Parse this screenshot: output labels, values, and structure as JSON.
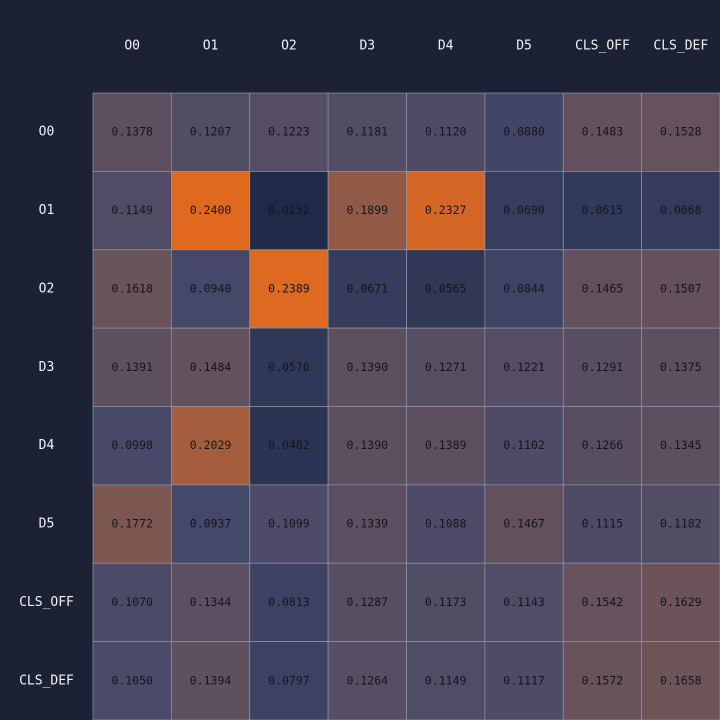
{
  "chart_data": {
    "type": "heatmap",
    "title": "",
    "xlabel": "",
    "ylabel": "",
    "x_labels": [
      "O0",
      "O1",
      "O2",
      "D3",
      "D4",
      "D5",
      "CLS_OFF",
      "CLS_DEF"
    ],
    "y_labels": [
      "O0",
      "O1",
      "O2",
      "D3",
      "D4",
      "D5",
      "CLS_OFF",
      "CLS_DEF"
    ],
    "values": [
      [
        "0.1378",
        "0.1207",
        "0.1223",
        "0.1181",
        "0.1120",
        "0.0880",
        "0.1483",
        "0.1528"
      ],
      [
        "0.1149",
        "0.2400",
        "0.0252",
        "0.1899",
        "0.2327",
        "0.0690",
        "0.0615",
        "0.0668"
      ],
      [
        "0.1618",
        "0.0940",
        "0.2389",
        "0.0671",
        "0.0565",
        "0.0844",
        "0.1465",
        "0.1507"
      ],
      [
        "0.1391",
        "0.1484",
        "0.0576",
        "0.1390",
        "0.1271",
        "0.1221",
        "0.1291",
        "0.1375"
      ],
      [
        "0.0998",
        "0.2029",
        "0.0482",
        "0.1390",
        "0.1389",
        "0.1102",
        "0.1266",
        "0.1345"
      ],
      [
        "0.1772",
        "0.0937",
        "0.1099",
        "0.1339",
        "0.1088",
        "0.1467",
        "0.1115",
        "0.1182"
      ],
      [
        "0.1070",
        "0.1344",
        "0.0813",
        "0.1287",
        "0.1173",
        "0.1143",
        "0.1542",
        "0.1629"
      ],
      [
        "0.1050",
        "0.1394",
        "0.0797",
        "0.1264",
        "0.1149",
        "0.1117",
        "0.1572",
        "0.1658"
      ]
    ],
    "color_scale": {
      "min": 0.025,
      "max": 0.24,
      "stops": [
        "#1e2a47",
        "#46496a",
        "#6e5458",
        "#e0691f"
      ]
    }
  }
}
